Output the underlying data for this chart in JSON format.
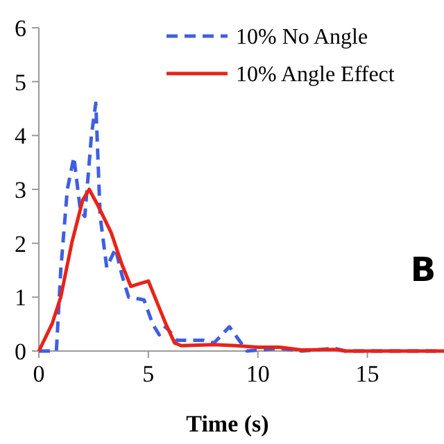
{
  "chart_data": {
    "type": "line",
    "xlabel": "Time (s)",
    "xlim": [
      0,
      18.5
    ],
    "xticks": [
      0,
      5,
      10,
      15
    ],
    "ylim": [
      0,
      6
    ],
    "yticks": [
      0,
      1,
      2,
      3,
      4,
      5,
      6
    ],
    "grid": false,
    "legend": "top right",
    "annotations": [
      "B"
    ],
    "series": [
      {
        "name": "10% No Angle",
        "color": "#3f5fe0",
        "line_style": "dashed",
        "x": [
          0,
          0.8,
          1.0,
          1.3,
          1.6,
          1.9,
          2.1,
          2.4,
          2.6,
          2.8,
          3.1,
          3.5,
          3.8,
          4.1,
          4.8,
          5.2,
          5.5,
          5.8,
          6.3,
          7.5,
          8.0,
          8.7,
          9.5,
          11,
          12,
          13.5,
          14,
          18.5
        ],
        "values": [
          0,
          0,
          1.5,
          3.0,
          3.6,
          2.6,
          2.5,
          4.0,
          4.6,
          2.5,
          1.55,
          1.9,
          1.4,
          1.0,
          0.95,
          0.5,
          0.3,
          0.45,
          0.2,
          0.2,
          0.15,
          0.45,
          0,
          0.05,
          0,
          0.05,
          0,
          0
        ]
      },
      {
        "name": "10% Angle Effect",
        "color": "#e8231a",
        "line_style": "solid",
        "x": [
          0,
          0.6,
          1.0,
          1.5,
          2.0,
          2.3,
          2.7,
          3.3,
          3.8,
          4.2,
          4.6,
          5.0,
          5.3,
          5.8,
          6.2,
          6.5,
          8,
          9,
          10,
          11,
          12,
          13.5,
          14,
          18.5
        ],
        "values": [
          0,
          0.5,
          1.0,
          2.0,
          2.8,
          3.0,
          2.7,
          2.2,
          1.6,
          1.2,
          1.25,
          1.3,
          1.0,
          0.5,
          0.15,
          0.1,
          0.12,
          0.1,
          0.07,
          0.07,
          0.02,
          0.03,
          0,
          0
        ]
      }
    ]
  }
}
